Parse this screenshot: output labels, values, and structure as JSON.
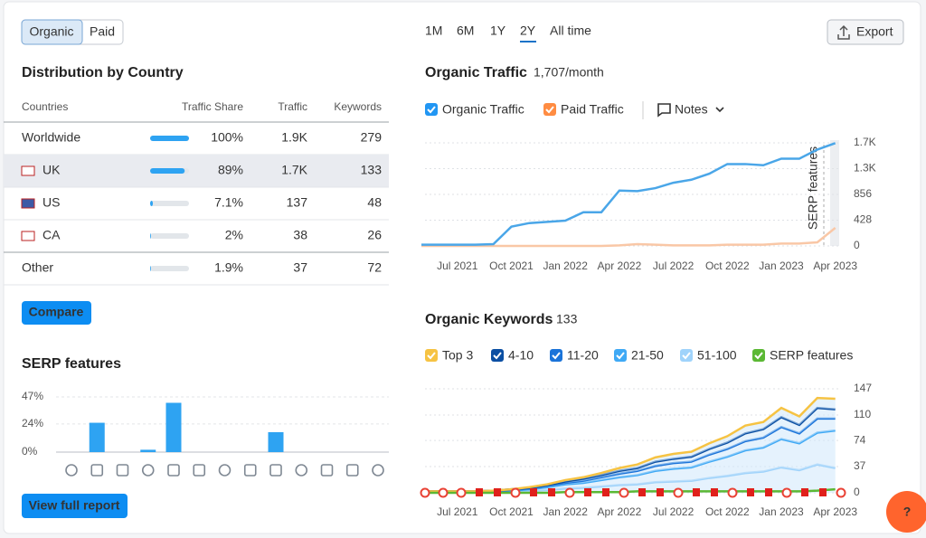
{
  "tabs": [
    "Organic",
    "Paid"
  ],
  "periods": [
    "1M",
    "6M",
    "1Y",
    "2Y",
    "All time"
  ],
  "export": "Export",
  "distribution": {
    "title": "Distribution by Country",
    "columns": [
      "Countries",
      "Traffic Share",
      "Traffic",
      "Keywords"
    ],
    "rows": [
      {
        "country": "Worldwide",
        "share": 100,
        "share_label": "100%",
        "traffic": "1.9K",
        "keywords": 279
      },
      {
        "country": "UK",
        "share": 89,
        "share_label": "89%",
        "traffic": "1.7K",
        "keywords": 133
      },
      {
        "country": "US",
        "share": 7.1,
        "share_label": "7.1%",
        "traffic": 137,
        "keywords": 48
      },
      {
        "country": "CA",
        "share": 2,
        "share_label": "2%",
        "traffic": 38,
        "keywords": 26
      },
      {
        "country": "Other",
        "share": 1.9,
        "share_label": "1.9%",
        "traffic": 37,
        "keywords": 72
      }
    ]
  },
  "compare": "Compare",
  "serp": {
    "type": "bar",
    "title": "SERP features",
    "ylim": [
      0,
      47
    ],
    "yticks": [
      {
        "value": 0,
        "label": "0%"
      },
      {
        "value": 24,
        "label": "24%"
      },
      {
        "value": 47,
        "label": "47%"
      }
    ],
    "values": [
      0,
      25,
      0,
      2,
      42,
      0,
      0,
      0,
      17,
      0,
      0,
      0,
      0
    ],
    "color": "#2ea3f2"
  },
  "view_report": "View full report",
  "traffic": {
    "type": "line",
    "title": "Organic Traffic",
    "subtitle": "1,707/month",
    "notes": "Notes",
    "annotation": "SERP features",
    "categories": [
      null,
      null,
      "Jul 2021",
      null,
      null,
      "Oct 2021",
      null,
      null,
      "Jan 2022",
      null,
      null,
      "Apr 2022",
      null,
      null,
      "Jul 2022",
      null,
      null,
      "Oct 2022",
      null,
      null,
      "Jan 2023",
      null,
      null,
      "Apr 2023"
    ],
    "series": [
      {
        "name": "Organic Traffic",
        "color": "#4aa6e8",
        "check": "#2196f3",
        "values": [
          20,
          20,
          20,
          20,
          30,
          320,
          380,
          400,
          420,
          560,
          560,
          920,
          910,
          960,
          1050,
          1100,
          1200,
          1360,
          1360,
          1340,
          1450,
          1450,
          1600,
          1707
        ]
      },
      {
        "name": "Paid Traffic",
        "color": "#f9c7a6",
        "check": "#ff8c42",
        "values": [
          0,
          0,
          0,
          0,
          0,
          0,
          0,
          0,
          0,
          0,
          0,
          10,
          30,
          20,
          10,
          10,
          10,
          20,
          20,
          20,
          40,
          40,
          60,
          300
        ]
      }
    ],
    "ylim": [
      0,
      1712
    ],
    "yticks": [
      0,
      428,
      856,
      {
        "value": 1284,
        "label": "1.3K"
      },
      {
        "value": 1712,
        "label": "1.7K"
      }
    ]
  },
  "keywords": {
    "type": "area",
    "title": "Organic Keywords",
    "subtitle": "133",
    "categories": [
      null,
      null,
      "Jul 2021",
      null,
      null,
      "Oct 2021",
      null,
      null,
      "Jan 2022",
      null,
      null,
      "Apr 2022",
      null,
      null,
      "Jul 2022",
      null,
      null,
      "Oct 2022",
      null,
      null,
      "Jan 2023",
      null,
      null,
      "Apr 2023"
    ],
    "series": [
      {
        "name": "Top 3",
        "color": "#f6c343",
        "values": [
          0,
          0,
          0,
          0,
          0,
          0,
          1,
          1,
          2,
          2,
          3,
          4,
          5,
          6,
          7,
          7,
          8,
          9,
          11,
          10,
          13,
          12,
          14,
          15
        ]
      },
      {
        "name": "4-10",
        "color": "#0b4fa3",
        "values": [
          0,
          0,
          0,
          0,
          1,
          1,
          1,
          1,
          2,
          3,
          3,
          4,
          4,
          6,
          6,
          7,
          8,
          9,
          11,
          12,
          14,
          12,
          15,
          13
        ]
      },
      {
        "name": "11-20",
        "color": "#1a73d9",
        "values": [
          0,
          0,
          0,
          0,
          0,
          1,
          1,
          2,
          2,
          3,
          4,
          5,
          6,
          7,
          8,
          8,
          10,
          11,
          13,
          14,
          17,
          14,
          20,
          17
        ]
      },
      {
        "name": "21-50",
        "color": "#3fa9f5",
        "values": [
          1,
          1,
          1,
          1,
          1,
          1,
          2,
          4,
          6,
          7,
          9,
          11,
          13,
          16,
          18,
          19,
          23,
          27,
          32,
          34,
          40,
          38,
          45,
          53
        ]
      },
      {
        "name": "51-100",
        "color": "#9fd3fb",
        "values": [
          1,
          1,
          1,
          1,
          1,
          2,
          3,
          4,
          6,
          7,
          9,
          11,
          12,
          15,
          16,
          17,
          21,
          24,
          28,
          30,
          36,
          32,
          40,
          35
        ]
      },
      {
        "name": "SERP features",
        "color": "#5bb834",
        "values": [
          0,
          0,
          0,
          0,
          0,
          0,
          0,
          0,
          1,
          1,
          1,
          1,
          2,
          2,
          2,
          2,
          2,
          2,
          2,
          2,
          2,
          2,
          3,
          5
        ]
      }
    ],
    "ylim": [
      0,
      147
    ],
    "yticks": [
      0,
      37,
      74,
      110,
      147
    ]
  },
  "help": "?"
}
